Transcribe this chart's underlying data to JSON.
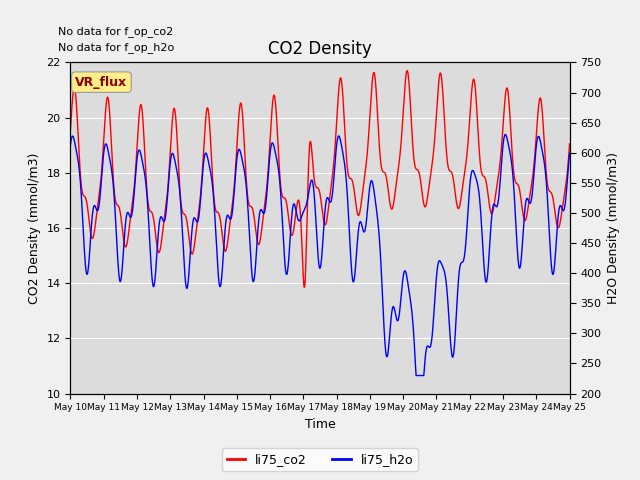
{
  "title": "CO2 Density",
  "xlabel": "Time",
  "ylabel_left": "CO2 Density (mmol/m3)",
  "ylabel_right": "H2O Density (mmol/m3)",
  "text_no_data": [
    "No data for f_op_co2",
    "No data for f_op_h2o"
  ],
  "vr_flux_label": "VR_flux",
  "legend_entries": [
    "li75_co2",
    "li75_h2o"
  ],
  "left_ylim": [
    10,
    22
  ],
  "right_ylim": [
    200,
    750
  ],
  "left_yticks": [
    10,
    12,
    14,
    16,
    18,
    20,
    22
  ],
  "right_yticks": [
    200,
    250,
    300,
    350,
    400,
    450,
    500,
    550,
    600,
    650,
    700,
    750
  ],
  "color_co2": "#FF0000",
  "color_h2o": "#0000FF",
  "bg_color": "#DCDCDC",
  "fig_bg_color": "#F0F0F0",
  "tick_fontsize": 8,
  "label_fontsize": 9,
  "title_fontsize": 12
}
